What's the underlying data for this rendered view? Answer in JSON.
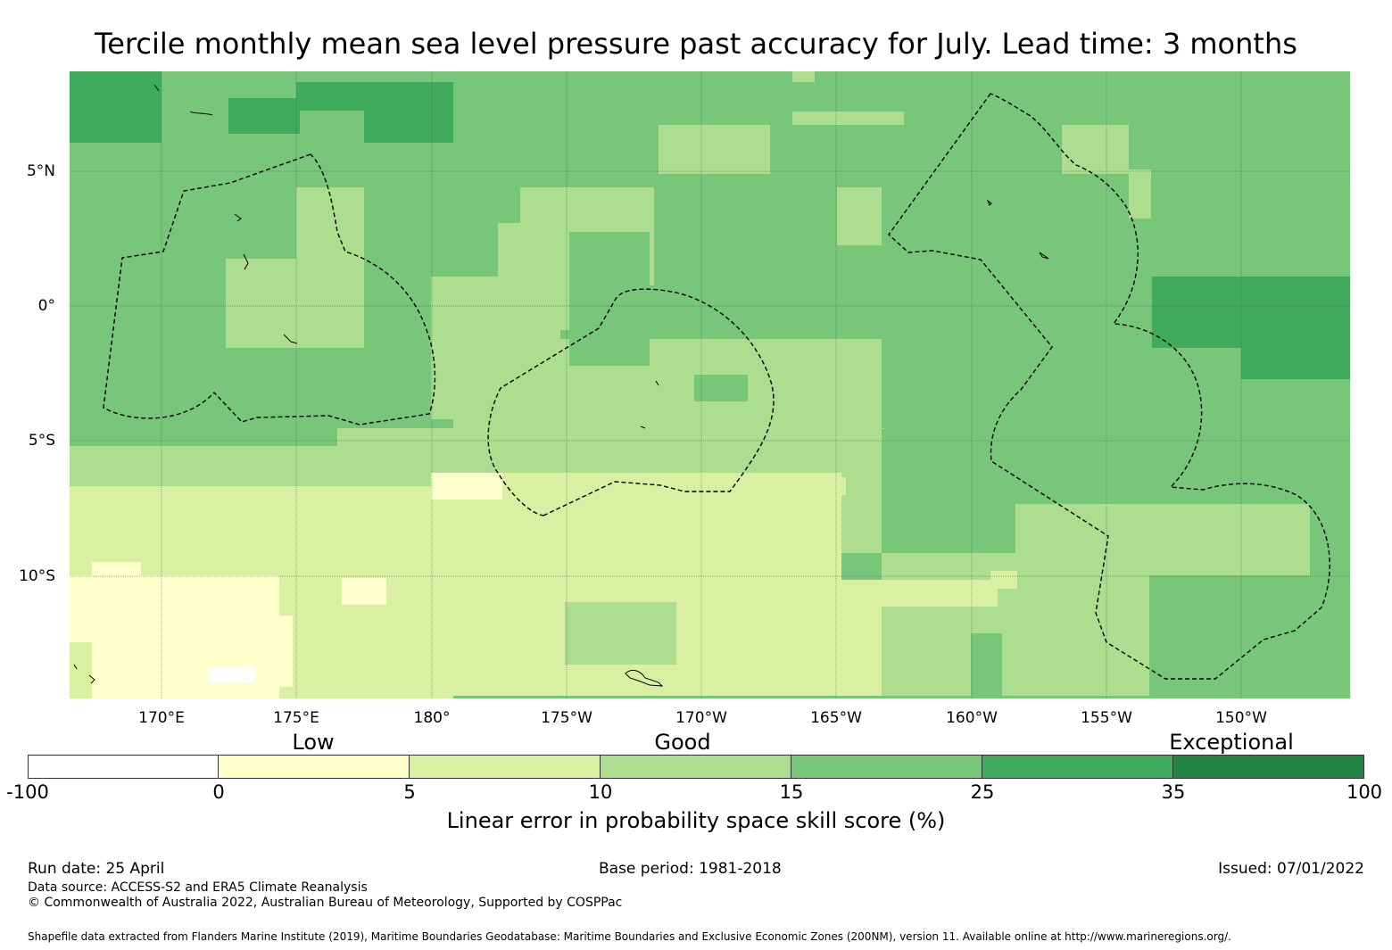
{
  "title": "Tercile monthly mean sea level pressure past accuracy for July. Lead time: 3 months",
  "map": {
    "lon_labels": [
      "170°E",
      "175°E",
      "180°",
      "175°W",
      "170°W",
      "165°W",
      "160°W",
      "155°W",
      "150°W"
    ],
    "lat_labels": [
      "5°N",
      "0°",
      "5°S",
      "10°S"
    ],
    "colors": {
      "neg": "#ffffff",
      "c0_5": "#ffffcc",
      "c5_10": "#d9f0a3",
      "c10_15": "#addd8e",
      "c15_25": "#78c679",
      "c25_35": "#41ab5d",
      "c35_100": "#238443"
    }
  },
  "colorbar": {
    "categories": [
      "Low",
      "Good",
      "Exceptional"
    ],
    "ticks": [
      "-100",
      "0",
      "5",
      "10",
      "15",
      "25",
      "35",
      "100"
    ],
    "colors": [
      "#ffffff",
      "#ffffcc",
      "#d9f0a3",
      "#addd8e",
      "#78c679",
      "#41ab5d",
      "#238443"
    ],
    "label": "Linear error in probability space skill score (%)"
  },
  "footer": {
    "run_date": "Run date: 25 April",
    "base_period": "Base period: 1981-2018",
    "issued": "Issued: 07/01/2022",
    "data_source": "Data source: ACCESS-S2 and ERA5 Climate Reanalysis",
    "copyright": "© Commonwealth of Australia 2022, Australian Bureau of Meteorology, Supported by COSPPac",
    "shapefile": "Shapefile data extracted from Flanders Marine Institute (2019), Maritime Boundaries Geodatabase: Maritime Boundaries and Exclusive Economic Zones (200NM), version 11. Available online at http://www.marineregions.org/."
  }
}
